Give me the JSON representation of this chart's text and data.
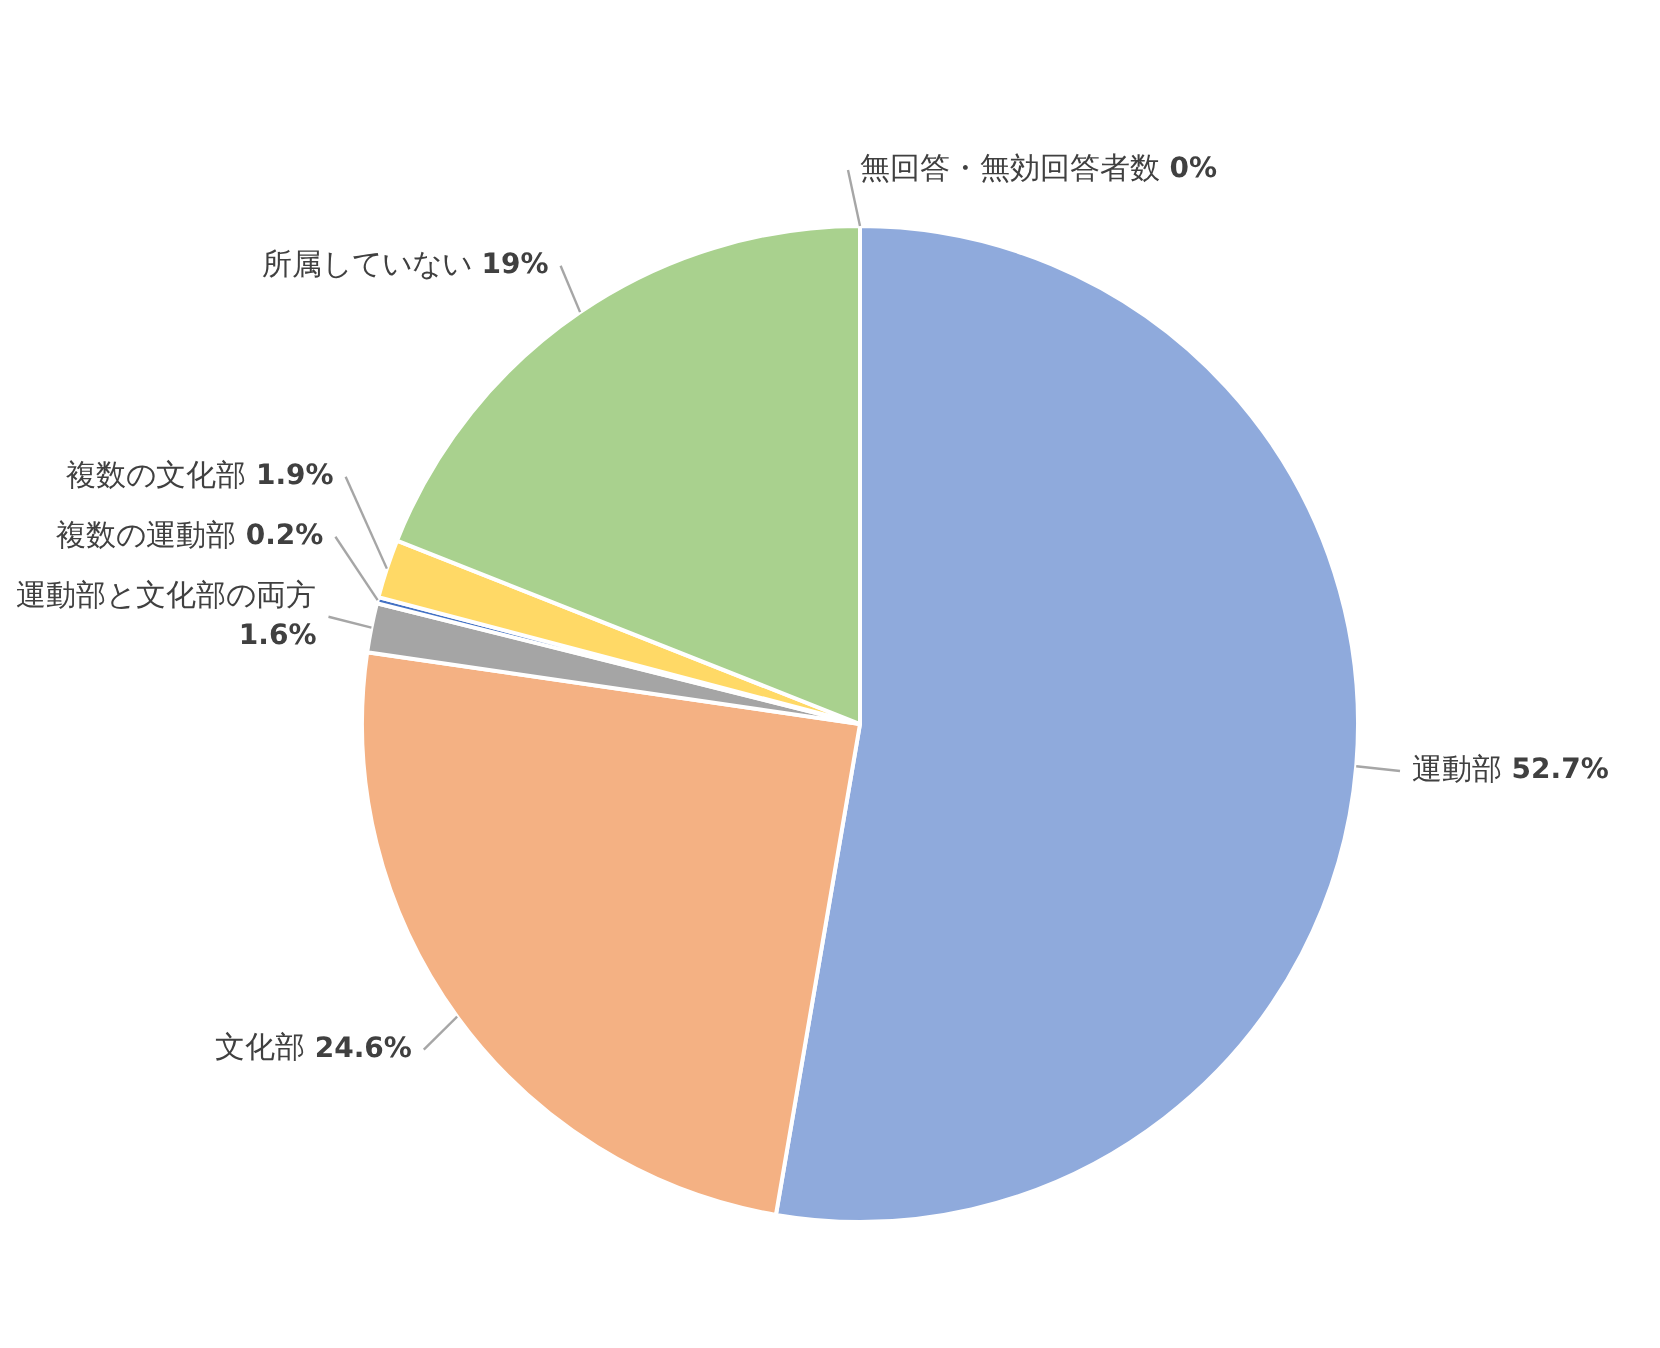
{
  "chart_data": {
    "type": "pie",
    "categories": [
      "運動部",
      "文化部",
      "運動部と文化部の両方",
      "複数の運動部",
      "複数の文化部",
      "所属していない",
      "無回答・無効回答者数"
    ],
    "values": [
      52.7,
      24.6,
      1.6,
      0.2,
      1.9,
      19,
      0
    ],
    "value_labels": [
      "52.7%",
      "24.6%",
      "1.6%",
      "0.2%",
      "1.9%",
      "19%",
      "0%"
    ],
    "colors": [
      "#8faadc",
      "#f4b183",
      "#a5a5a5",
      "#4472c4",
      "#ffd966",
      "#a9d18e",
      "#5b9bd5"
    ],
    "legend": false
  }
}
